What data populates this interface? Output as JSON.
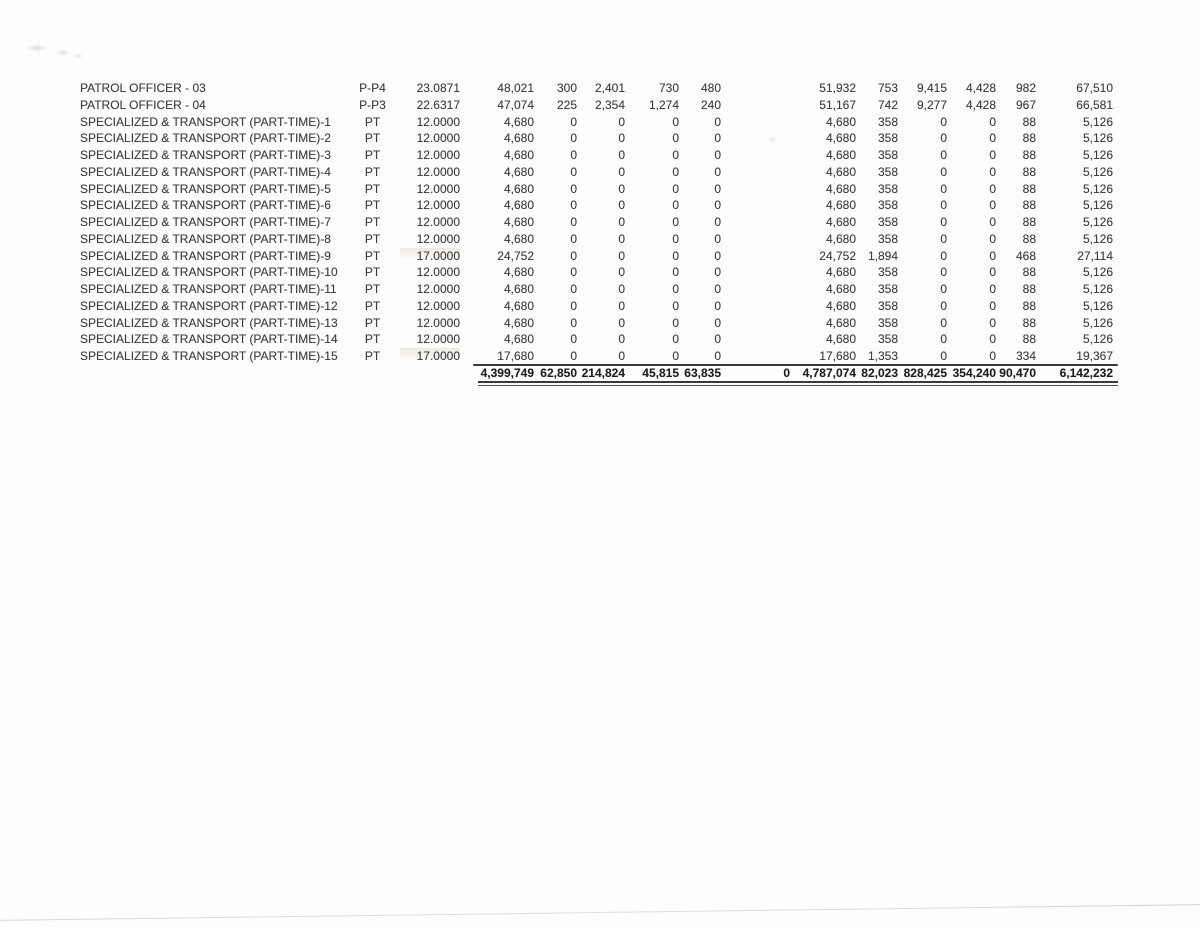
{
  "table": {
    "rows": [
      {
        "position": "PATROL OFFICER - 03",
        "grade": "P-P4",
        "rate": "23.0871",
        "cells": [
          "48,021",
          "300",
          "2,401",
          "730",
          "480",
          "",
          "51,932",
          "753",
          "9,415",
          "4,428",
          "982",
          "67,510"
        ]
      },
      {
        "position": "PATROL OFFICER - 04",
        "grade": "P-P3",
        "rate": "22.6317",
        "cells": [
          "47,074",
          "225",
          "2,354",
          "1,274",
          "240",
          "",
          "51,167",
          "742",
          "9,277",
          "4,428",
          "967",
          "66,581"
        ]
      },
      {
        "position": "SPECIALIZED & TRANSPORT (PART-TIME)-1",
        "grade": "PT",
        "rate": "12.0000",
        "cells": [
          "4,680",
          "0",
          "0",
          "0",
          "0",
          "",
          "4,680",
          "358",
          "0",
          "0",
          "88",
          "5,126"
        ]
      },
      {
        "position": "SPECIALIZED & TRANSPORT (PART-TIME)-2",
        "grade": "PT",
        "rate": "12.0000",
        "cells": [
          "4,680",
          "0",
          "0",
          "0",
          "0",
          "",
          "4,680",
          "358",
          "0",
          "0",
          "88",
          "5,126"
        ]
      },
      {
        "position": "SPECIALIZED & TRANSPORT (PART-TIME)-3",
        "grade": "PT",
        "rate": "12.0000",
        "cells": [
          "4,680",
          "0",
          "0",
          "0",
          "0",
          "",
          "4,680",
          "358",
          "0",
          "0",
          "88",
          "5,126"
        ]
      },
      {
        "position": "SPECIALIZED & TRANSPORT (PART-TIME)-4",
        "grade": "PT",
        "rate": "12.0000",
        "cells": [
          "4,680",
          "0",
          "0",
          "0",
          "0",
          "",
          "4,680",
          "358",
          "0",
          "0",
          "88",
          "5,126"
        ]
      },
      {
        "position": "SPECIALIZED & TRANSPORT (PART-TIME)-5",
        "grade": "PT",
        "rate": "12.0000",
        "cells": [
          "4,680",
          "0",
          "0",
          "0",
          "0",
          "",
          "4,680",
          "358",
          "0",
          "0",
          "88",
          "5,126"
        ]
      },
      {
        "position": "SPECIALIZED & TRANSPORT (PART-TIME)-6",
        "grade": "PT",
        "rate": "12.0000",
        "cells": [
          "4,680",
          "0",
          "0",
          "0",
          "0",
          "",
          "4,680",
          "358",
          "0",
          "0",
          "88",
          "5,126"
        ]
      },
      {
        "position": "SPECIALIZED & TRANSPORT (PART-TIME)-7",
        "grade": "PT",
        "rate": "12.0000",
        "cells": [
          "4,680",
          "0",
          "0",
          "0",
          "0",
          "",
          "4,680",
          "358",
          "0",
          "0",
          "88",
          "5,126"
        ]
      },
      {
        "position": "SPECIALIZED & TRANSPORT (PART-TIME)-8",
        "grade": "PT",
        "rate": "12.0000",
        "cells": [
          "4,680",
          "0",
          "0",
          "0",
          "0",
          "",
          "4,680",
          "358",
          "0",
          "0",
          "88",
          "5,126"
        ]
      },
      {
        "position": "SPECIALIZED & TRANSPORT (PART-TIME)-9",
        "grade": "PT",
        "rate": "17.0000",
        "cells": [
          "24,752",
          "0",
          "0",
          "0",
          "0",
          "",
          "24,752",
          "1,894",
          "0",
          "0",
          "468",
          "27,114"
        ]
      },
      {
        "position": "SPECIALIZED & TRANSPORT (PART-TIME)-10",
        "grade": "PT",
        "rate": "12.0000",
        "cells": [
          "4,680",
          "0",
          "0",
          "0",
          "0",
          "",
          "4,680",
          "358",
          "0",
          "0",
          "88",
          "5,126"
        ]
      },
      {
        "position": "SPECIALIZED & TRANSPORT (PART-TIME)-11",
        "grade": "PT",
        "rate": "12.0000",
        "cells": [
          "4,680",
          "0",
          "0",
          "0",
          "0",
          "",
          "4,680",
          "358",
          "0",
          "0",
          "88",
          "5,126"
        ]
      },
      {
        "position": "SPECIALIZED & TRANSPORT (PART-TIME)-12",
        "grade": "PT",
        "rate": "12.0000",
        "cells": [
          "4,680",
          "0",
          "0",
          "0",
          "0",
          "",
          "4,680",
          "358",
          "0",
          "0",
          "88",
          "5,126"
        ]
      },
      {
        "position": "SPECIALIZED & TRANSPORT (PART-TIME)-13",
        "grade": "PT",
        "rate": "12.0000",
        "cells": [
          "4,680",
          "0",
          "0",
          "0",
          "0",
          "",
          "4,680",
          "358",
          "0",
          "0",
          "88",
          "5,126"
        ]
      },
      {
        "position": "SPECIALIZED & TRANSPORT (PART-TIME)-14",
        "grade": "PT",
        "rate": "12.0000",
        "cells": [
          "4,680",
          "0",
          "0",
          "0",
          "0",
          "",
          "4,680",
          "358",
          "0",
          "0",
          "88",
          "5,126"
        ]
      },
      {
        "position": "SPECIALIZED & TRANSPORT (PART-TIME)-15",
        "grade": "PT",
        "rate": "17.0000",
        "cells": [
          "17,680",
          "0",
          "0",
          "0",
          "0",
          "",
          "17,680",
          "1,353",
          "0",
          "0",
          "334",
          "19,367"
        ]
      }
    ],
    "totals": {
      "position": "",
      "grade": "",
      "rate": "",
      "cells": [
        "4,399,749",
        "62,850",
        "214,824",
        "45,815",
        "63,835",
        "0",
        "4,787,074",
        "82,023",
        "828,425",
        "354,240",
        "90,470",
        "6,142,232"
      ]
    }
  }
}
